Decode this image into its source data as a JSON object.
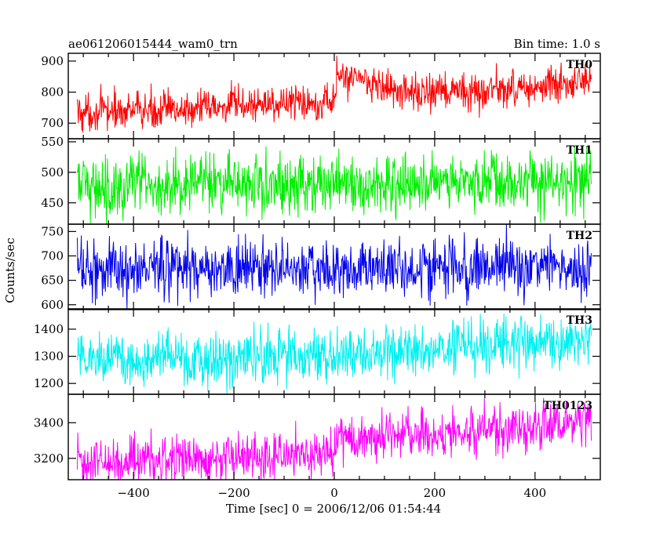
{
  "chart_data": {
    "type": "line",
    "title": "ae061206015444_wam0_trn",
    "subtitle": "Bin time: 1.0 s",
    "xlabel": "Time [sec] 0 = 2006/12/06 01:54:44",
    "ylabel": "Counts/sec",
    "xlim": [
      -530,
      530
    ],
    "x_range": [
      -512,
      512
    ],
    "bin_time": 1.0,
    "x_ticks": [
      -400,
      -200,
      0,
      200,
      400
    ],
    "grid": false,
    "panels": [
      {
        "name": "TH0",
        "color": "#ff0000",
        "ylim": [
          650,
          925
        ],
        "y_ticks": [
          700,
          800,
          900
        ],
        "trend": [
          [
            -512,
            735
          ],
          [
            -300,
            745
          ],
          [
            -100,
            765
          ],
          [
            0,
            775
          ],
          [
            5,
            840
          ],
          [
            40,
            855
          ],
          [
            80,
            830
          ],
          [
            120,
            800
          ],
          [
            200,
            795
          ],
          [
            300,
            805
          ],
          [
            400,
            815
          ],
          [
            512,
            830
          ]
        ],
        "noise_amplitude": 30
      },
      {
        "name": "TH1",
        "color": "#00ee00",
        "ylim": [
          415,
          555
        ],
        "y_ticks": [
          450,
          500,
          550
        ],
        "trend": [
          [
            -512,
            478
          ],
          [
            0,
            482
          ],
          [
            512,
            486
          ]
        ],
        "noise_amplitude": 24
      },
      {
        "name": "TH2",
        "color": "#0000ee",
        "ylim": [
          590,
          765
        ],
        "y_ticks": [
          600,
          650,
          700,
          750
        ],
        "trend": [
          [
            -512,
            675
          ],
          [
            0,
            672
          ],
          [
            512,
            678
          ]
        ],
        "noise_amplitude": 30
      },
      {
        "name": "TH3",
        "color": "#00f0f0",
        "ylim": [
          1160,
          1475
        ],
        "y_ticks": [
          1200,
          1300,
          1400
        ],
        "trend": [
          [
            -512,
            1295
          ],
          [
            -200,
            1290
          ],
          [
            0,
            1300
          ],
          [
            200,
            1320
          ],
          [
            400,
            1345
          ],
          [
            512,
            1360
          ]
        ],
        "noise_amplitude": 48
      },
      {
        "name": "TH0123",
        "color": "#ff00ff",
        "ylim": [
          3080,
          3560
        ],
        "y_ticks": [
          3200,
          3400
        ],
        "trend": [
          [
            -512,
            3185
          ],
          [
            -300,
            3195
          ],
          [
            -100,
            3215
          ],
          [
            0,
            3235
          ],
          [
            5,
            3320
          ],
          [
            100,
            3320
          ],
          [
            200,
            3330
          ],
          [
            400,
            3380
          ],
          [
            512,
            3430
          ]
        ],
        "noise_amplitude": 65
      }
    ]
  }
}
